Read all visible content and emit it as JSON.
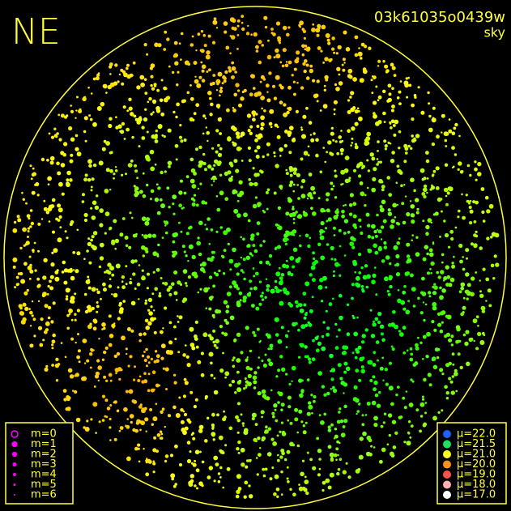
{
  "header": {
    "direction": "NE",
    "image_id": "03k61035o0439w",
    "mode": "sky"
  },
  "magnitude_legend": {
    "color": "#ff00ff",
    "items": [
      "m=0",
      "m=1",
      "m=2",
      "m=3",
      "m=4",
      "m=5",
      "m=6"
    ]
  },
  "sky_brightness_legend": {
    "items": [
      {
        "label": "μ=22.0",
        "color": "#2060ff"
      },
      {
        "label": "μ=21.5",
        "color": "#20e060"
      },
      {
        "label": "μ=21.0",
        "color": "#ffff20"
      },
      {
        "label": "μ=20.0",
        "color": "#ff9020"
      },
      {
        "label": "μ=19.0",
        "color": "#ff5050"
      },
      {
        "label": "μ=18.0",
        "color": "#ffb0b0"
      },
      {
        "label": "μ=17.0",
        "color": "#ffffff"
      }
    ]
  }
}
